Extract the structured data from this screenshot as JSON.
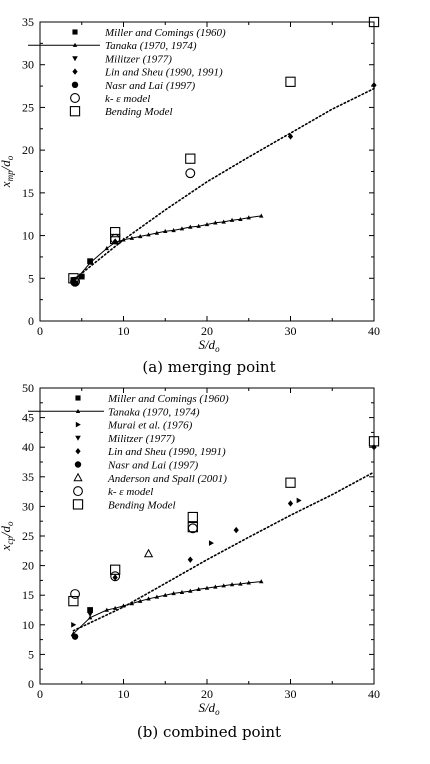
{
  "chart_data": [
    {
      "type": "scatter",
      "caption": "(a) merging point",
      "xlabel": "S/d",
      "xlabel_sub": "o",
      "ylabel": "x",
      "ylabel_sub": "mp",
      "ylabel_mid": "/d",
      "ylabel_sub2": "o",
      "xlim": [
        0,
        40
      ],
      "ylim": [
        0,
        35
      ],
      "xticks": [
        0,
        10,
        20,
        30,
        40
      ],
      "yticks": [
        0,
        5,
        10,
        15,
        20,
        25,
        30,
        35
      ],
      "legend_position": "top-left",
      "series": [
        {
          "name": "Miller and Comings (1960)",
          "marker": "filled-square",
          "x": [
            5,
            4,
            6
          ],
          "y": [
            5.2,
            4.8,
            7.0
          ]
        },
        {
          "name": "Tanaka (1970, 1974)",
          "marker": "small-triangle-line",
          "x": [
            4,
            6,
            8,
            9,
            10,
            11,
            12,
            13,
            14,
            15,
            16,
            17,
            18,
            19,
            20,
            21,
            22,
            23,
            24,
            25,
            26.5
          ],
          "y": [
            4.5,
            6.8,
            8.5,
            9.2,
            9.5,
            9.7,
            9.9,
            10.1,
            10.3,
            10.5,
            10.6,
            10.8,
            11.0,
            11.1,
            11.3,
            11.5,
            11.6,
            11.8,
            11.9,
            12.1,
            12.3
          ]
        },
        {
          "name": "Militzer (1977)",
          "marker": "filled-triangle-down",
          "x": [
            4.2
          ],
          "y": [
            4.9
          ]
        },
        {
          "name": "Lin and Sheu (1990, 1991)",
          "marker": "filled-diamond",
          "x": [
            4,
            9,
            30,
            40
          ],
          "y": [
            4.6,
            9.3,
            21.6,
            27.6
          ]
        },
        {
          "name": "Nasr and Lai (1997)",
          "marker": "filled-circle",
          "x": [
            4.2
          ],
          "y": [
            4.4
          ]
        },
        {
          "name": "k- ε model",
          "marker": "open-circle",
          "x": [
            4.2,
            9,
            18
          ],
          "y": [
            4.6,
            9.6,
            17.3
          ]
        },
        {
          "name": "Bending Model",
          "marker": "open-square",
          "x": [
            4,
            9,
            9,
            18,
            30,
            40
          ],
          "y": [
            5.0,
            9.6,
            10.4,
            19.0,
            28.0,
            35.0
          ]
        }
      ],
      "fit_line": {
        "style": "dotted",
        "x": [
          4,
          10,
          15,
          20,
          25,
          30,
          35,
          40
        ],
        "y": [
          4.8,
          9.5,
          13.0,
          16.3,
          19.2,
          22.0,
          24.8,
          27.2
        ]
      }
    },
    {
      "type": "scatter",
      "caption": "(b) combined point",
      "xlabel": "S/d",
      "xlabel_sub": "o",
      "ylabel": "x",
      "ylabel_sub": "cp",
      "ylabel_mid": "/d",
      "ylabel_sub2": "o",
      "xlim": [
        0,
        40
      ],
      "ylim": [
        0,
        50
      ],
      "xticks": [
        0,
        10,
        20,
        30,
        40
      ],
      "yticks": [
        0,
        5,
        10,
        15,
        20,
        25,
        30,
        35,
        40,
        45,
        50
      ],
      "legend_position": "top-left",
      "series": [
        {
          "name": "Miller and Comings (1960)",
          "marker": "filled-square",
          "x": [
            6
          ],
          "y": [
            12.5
          ]
        },
        {
          "name": "Tanaka (1970, 1974)",
          "marker": "small-triangle-line",
          "x": [
            4,
            6,
            8,
            9,
            10,
            11,
            12,
            13,
            14,
            15,
            16,
            17,
            18,
            19,
            20,
            21,
            22,
            23,
            24,
            25,
            26.5
          ],
          "y": [
            8.5,
            11.2,
            12.5,
            12.8,
            13.2,
            13.6,
            14.0,
            14.4,
            14.7,
            15.0,
            15.3,
            15.5,
            15.7,
            16.0,
            16.2,
            16.4,
            16.6,
            16.8,
            16.9,
            17.1,
            17.3
          ]
        },
        {
          "name": "Murai et al. (1976)",
          "marker": "filled-triangle-right",
          "x": [
            4,
            20.5,
            31
          ],
          "y": [
            10.0,
            23.8,
            31.0
          ]
        },
        {
          "name": "Militzer (1977)",
          "marker": "filled-triangle-down",
          "x": [
            6
          ],
          "y": [
            11.8
          ]
        },
        {
          "name": "Lin and Sheu (1990, 1991)",
          "marker": "filled-diamond",
          "x": [
            4,
            9,
            18,
            23.5,
            30,
            40
          ],
          "y": [
            8.2,
            18.0,
            21.0,
            26.0,
            30.5,
            40.0
          ]
        },
        {
          "name": "Nasr and Lai (1997)",
          "marker": "filled-circle",
          "x": [
            4.2
          ],
          "y": [
            8.0
          ]
        },
        {
          "name": "Anderson and Spall (2001)",
          "marker": "open-triangle",
          "x": [
            13
          ],
          "y": [
            22.0
          ]
        },
        {
          "name": "k- ε model",
          "marker": "open-circle",
          "x": [
            4.2,
            9,
            18.3
          ],
          "y": [
            15.2,
            18.2,
            26.3
          ]
        },
        {
          "name": "Bending Model",
          "marker": "open-square",
          "x": [
            4,
            9,
            18.3,
            18.3,
            30,
            40
          ],
          "y": [
            14.0,
            19.3,
            26.5,
            28.2,
            34.0,
            41.0
          ]
        }
      ],
      "fit_line": {
        "style": "dotted",
        "x": [
          4,
          10,
          15,
          20,
          25,
          30,
          35,
          40
        ],
        "y": [
          9.0,
          13.0,
          17.0,
          21.0,
          24.8,
          28.5,
          32.0,
          35.8
        ]
      }
    }
  ]
}
